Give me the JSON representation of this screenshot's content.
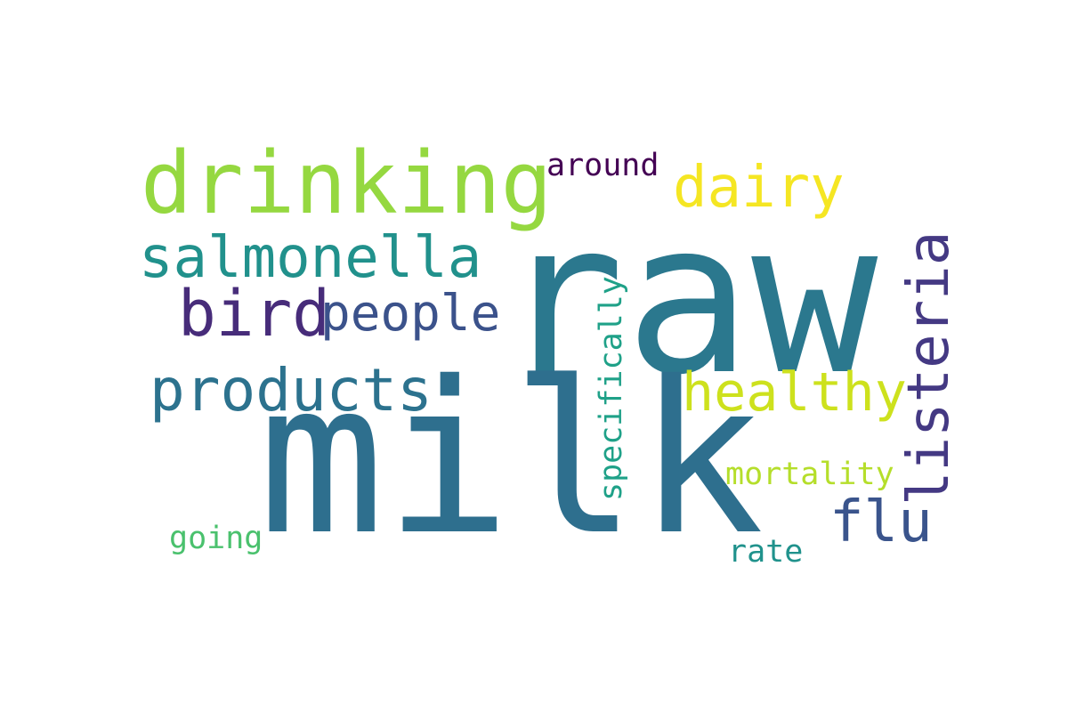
{
  "words": {
    "raw": {
      "text": "raw",
      "color": "#2b788e"
    },
    "milk": {
      "text": "milk",
      "color": "#2e6f8e"
    },
    "drinking": {
      "text": "drinking",
      "color": "#95d840"
    },
    "dairy": {
      "text": "dairy",
      "color": "#f5e623"
    },
    "around": {
      "text": "around",
      "color": "#440154"
    },
    "salmonella": {
      "text": "salmonella",
      "color": "#21918c"
    },
    "bird": {
      "text": "bird",
      "color": "#472c7a"
    },
    "people": {
      "text": "people",
      "color": "#3b528b"
    },
    "products": {
      "text": "products",
      "color": "#2c728e"
    },
    "healthy": {
      "text": "healthy",
      "color": "#cde11d"
    },
    "listeria": {
      "text": "listeria",
      "color": "#443983"
    },
    "specifically": {
      "text": "specifically",
      "color": "#1fa188"
    },
    "mortality": {
      "text": "mortality",
      "color": "#b5de2b"
    },
    "flu": {
      "text": "flu",
      "color": "#3a548c"
    },
    "going": {
      "text": "going",
      "color": "#4ac16d"
    },
    "rate": {
      "text": "rate",
      "color": "#20928c"
    }
  }
}
